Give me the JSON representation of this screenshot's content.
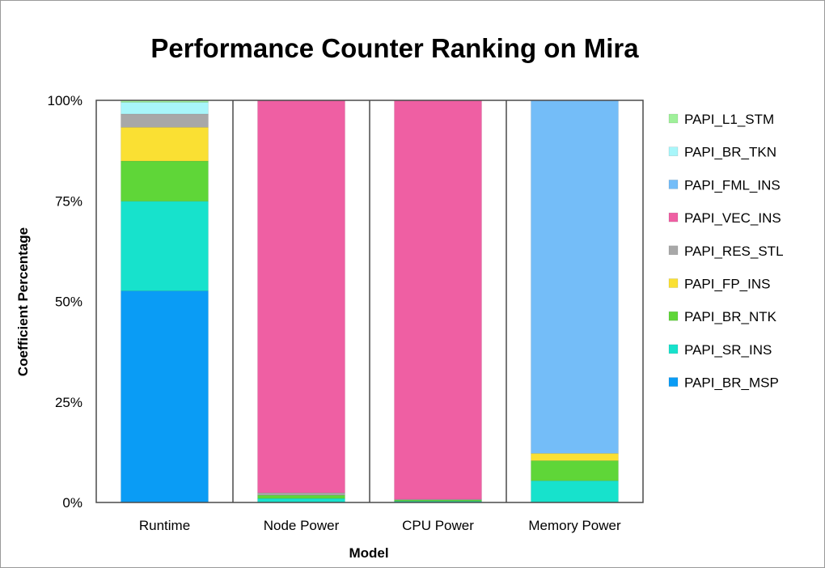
{
  "chart_data": {
    "type": "bar",
    "stacked": true,
    "percent": true,
    "title": "Performance Counter Ranking on Mira",
    "xlabel": "Model",
    "ylabel": "Coefficient Percentage",
    "categories": [
      "Runtime",
      "Node Power",
      "CPU Power",
      "Memory Power"
    ],
    "ylim": [
      0,
      100
    ],
    "yticks": [
      {
        "value": 0,
        "label": "0%"
      },
      {
        "value": 25,
        "label": "25%"
      },
      {
        "value": 50,
        "label": "50%"
      },
      {
        "value": 75,
        "label": "75%"
      },
      {
        "value": 100,
        "label": "100%"
      }
    ],
    "grid": {
      "horizontal": false,
      "vertical": true
    },
    "legend_position": "right",
    "series": [
      {
        "name": "PAPI_BR_MSP",
        "color": "#0a9cf5",
        "values": [
          52.6,
          0,
          0,
          0
        ]
      },
      {
        "name": "PAPI_SR_INS",
        "color": "#17e2cc",
        "values": [
          22.3,
          1.0,
          0.3,
          5.4
        ]
      },
      {
        "name": "PAPI_BR_NTK",
        "color": "#5fd638",
        "values": [
          10.0,
          0.8,
          0.3,
          5.0
        ]
      },
      {
        "name": "PAPI_FP_INS",
        "color": "#fae033",
        "values": [
          8.4,
          0,
          0,
          1.8
        ]
      },
      {
        "name": "PAPI_RES_STL",
        "color": "#a8a8a8",
        "values": [
          3.3,
          0.6,
          0.2,
          0
        ]
      },
      {
        "name": "PAPI_VEC_INS",
        "color": "#ef5fa3",
        "values": [
          0,
          97.6,
          99.2,
          0
        ]
      },
      {
        "name": "PAPI_FML_INS",
        "color": "#74bdf8",
        "values": [
          0,
          0,
          0,
          87.8
        ]
      },
      {
        "name": "PAPI_BR_TKN",
        "color": "#a8f6fa",
        "values": [
          2.9,
          0,
          0,
          0
        ]
      },
      {
        "name": "PAPI_L1_STM",
        "color": "#9ff09a",
        "values": [
          0.5,
          0,
          0,
          0
        ]
      }
    ]
  }
}
